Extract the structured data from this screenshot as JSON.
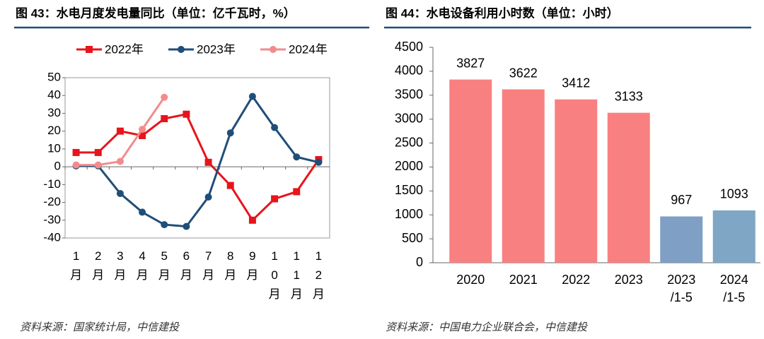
{
  "chart_data": [
    {
      "type": "line",
      "title": "图 43：水电月度发电量同比（单位：亿千瓦时，%）",
      "categories": [
        "1月",
        "2月",
        "3月",
        "4月",
        "5月",
        "6月",
        "7月",
        "8月",
        "9月",
        "10月",
        "11月",
        "12月"
      ],
      "series": [
        {
          "name": "2022年",
          "color": "#e8141b",
          "marker": "square",
          "values": [
            8,
            8,
            20,
            17.5,
            27,
            29.5,
            2.5,
            -10.5,
            -30,
            -18,
            -14,
            4
          ]
        },
        {
          "name": "2023年",
          "color": "#1f4e79",
          "marker": "circle",
          "values": [
            0.5,
            0.5,
            -15,
            -25.5,
            -32.5,
            -33.5,
            -17,
            19,
            39.5,
            22,
            5.5,
            2.5
          ]
        },
        {
          "name": "2024年",
          "color": "#f28b8b",
          "marker": "circle",
          "values": [
            1,
            1,
            3,
            21,
            39,
            null,
            null,
            null,
            null,
            null,
            null,
            null
          ]
        }
      ],
      "ylim": [
        -40,
        50
      ],
      "yticks": [
        -40,
        -30,
        -20,
        -10,
        0,
        10,
        20,
        30,
        40,
        50
      ],
      "legend": "top",
      "source": "资料来源：国家统计局，中信建投"
    },
    {
      "type": "bar",
      "title": "图 44：水电设备利用小时数（单位：小时）",
      "categories": [
        "2020",
        "2021",
        "2022",
        "2023",
        "2023/1-5",
        "2024/1-5"
      ],
      "values": [
        3827,
        3622,
        3412,
        3133,
        967,
        1093
      ],
      "colors": [
        "#f98080",
        "#f98080",
        "#f98080",
        "#f98080",
        "#7f9fc4",
        "#7fa6c4"
      ],
      "ylim": [
        0,
        4500
      ],
      "yticks": [
        0,
        500,
        1000,
        1500,
        2000,
        2500,
        3000,
        3500,
        4000,
        4500
      ],
      "source": "资料来源：中国电力企业联合会，中信建投"
    }
  ]
}
